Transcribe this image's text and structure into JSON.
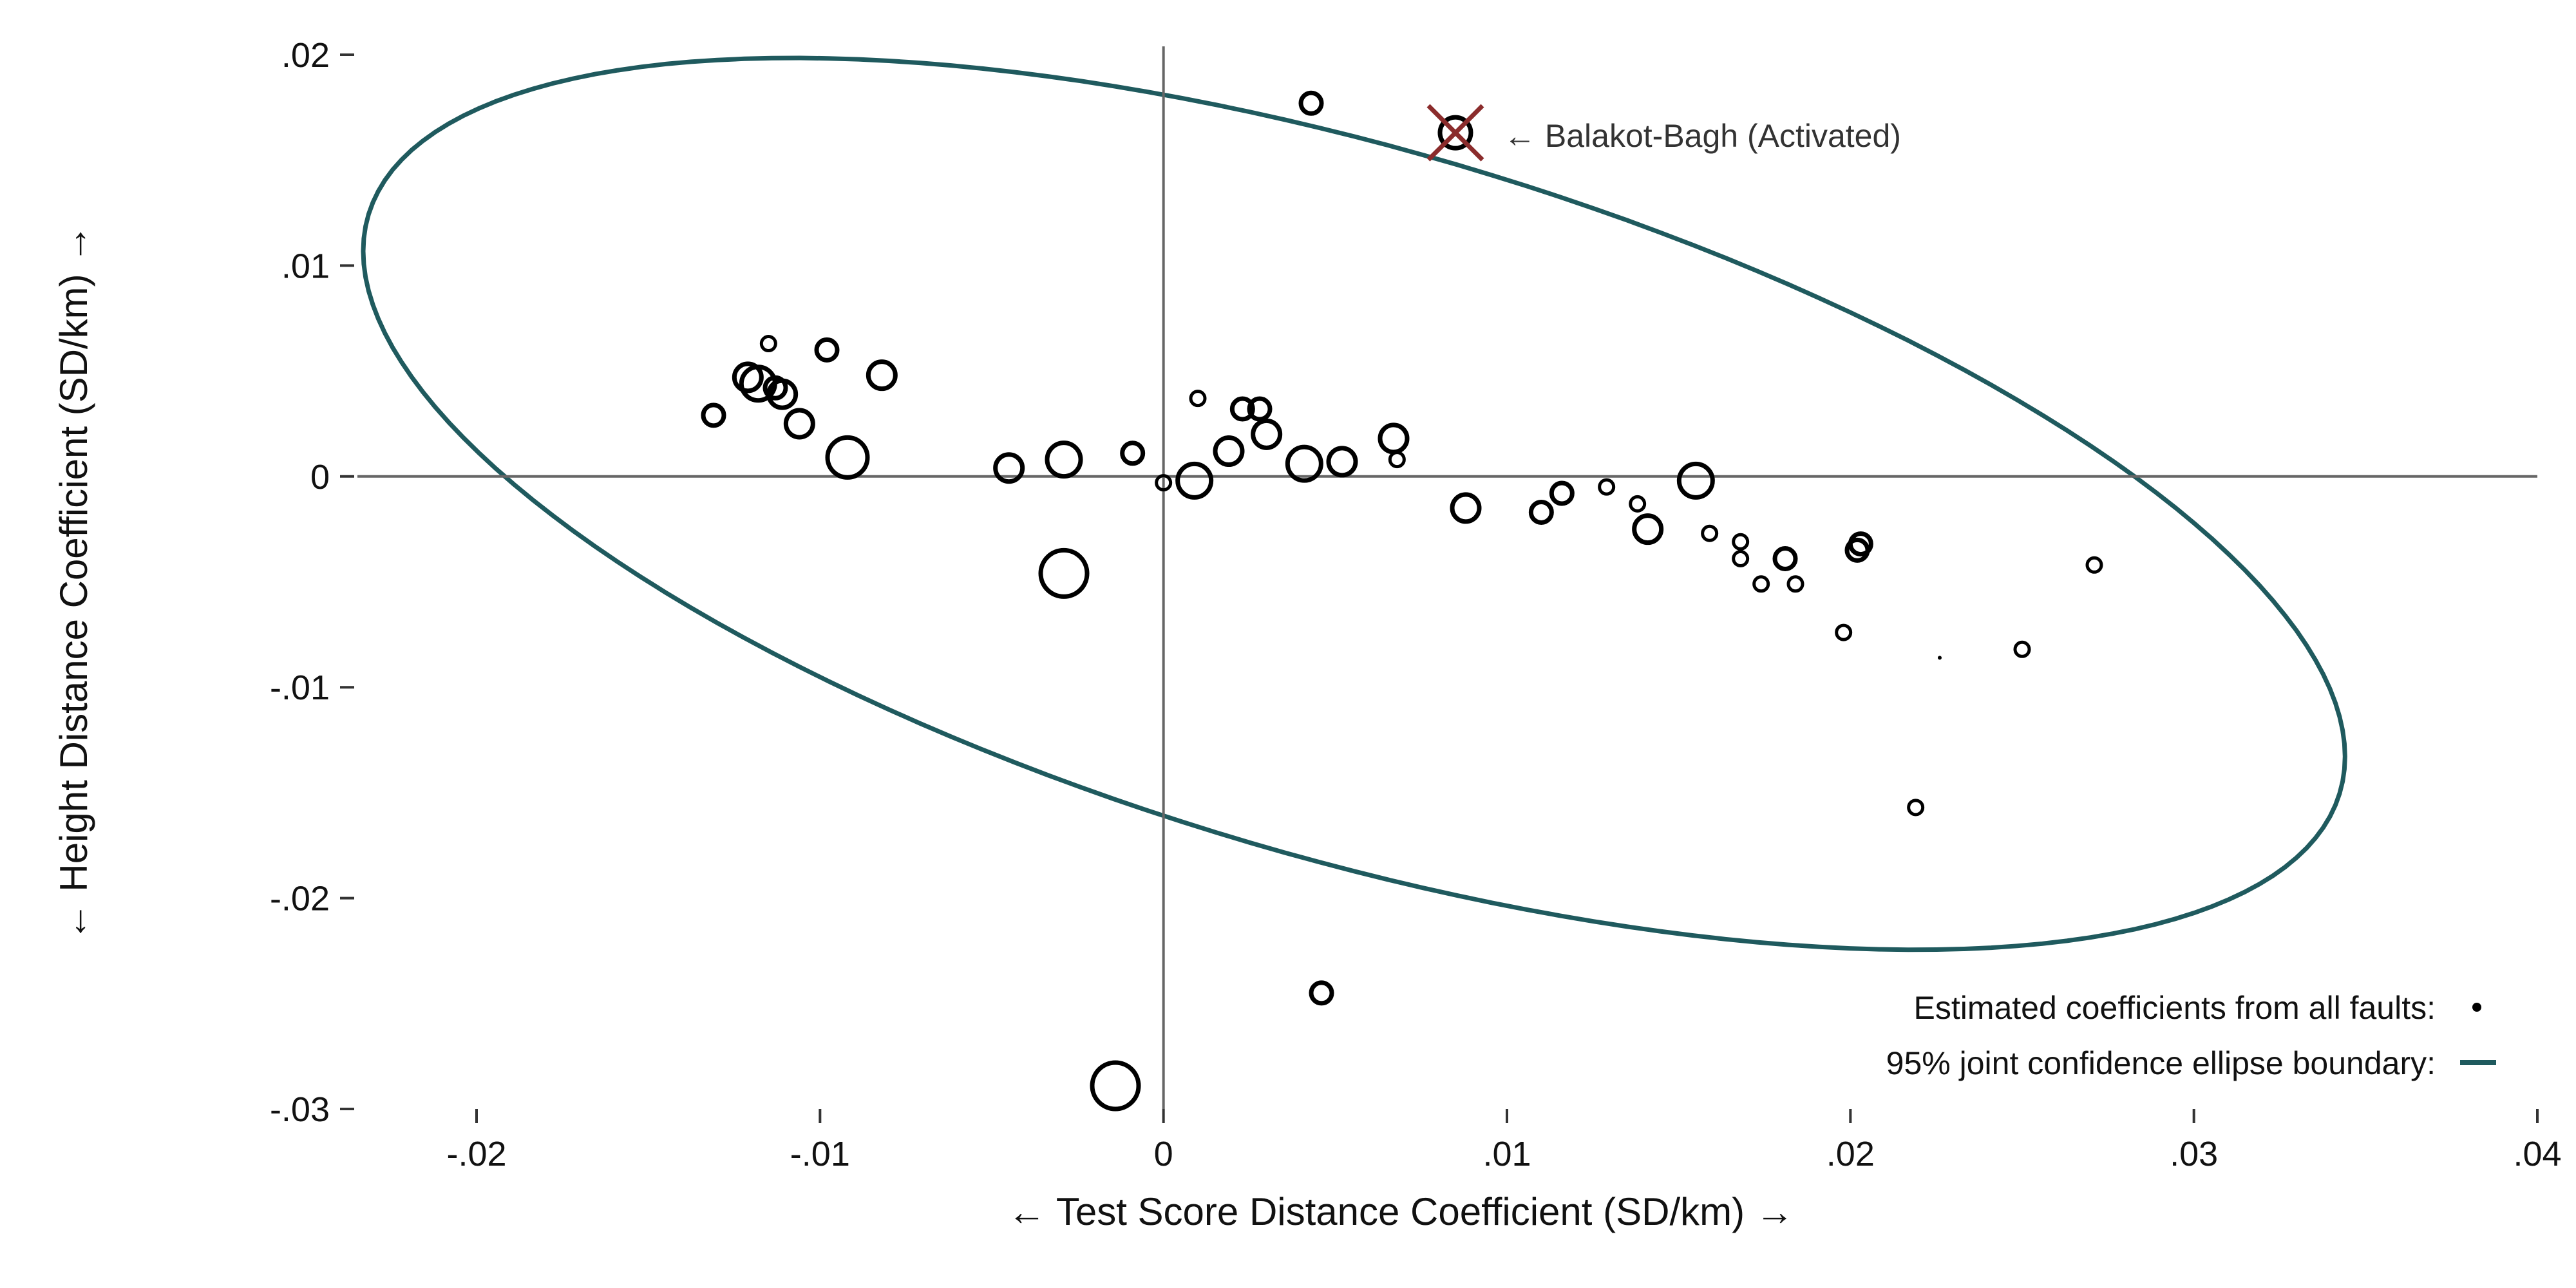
{
  "chart_data": {
    "type": "scatter",
    "xlabel": "← Test Score Distance Coefficient (SD/km) →",
    "ylabel": "← Height Distance Coefficient (SD/km) →",
    "xlim": [
      -0.02,
      0.04
    ],
    "ylim": [
      -0.03,
      0.02
    ],
    "xticks": [
      {
        "value": -0.02,
        "label": "-.02"
      },
      {
        "value": -0.01,
        "label": "-.01"
      },
      {
        "value": 0,
        "label": "0"
      },
      {
        "value": 0.01,
        "label": ".01"
      },
      {
        "value": 0.02,
        "label": ".02"
      },
      {
        "value": 0.03,
        "label": ".03"
      },
      {
        "value": 0.04,
        "label": ".04"
      }
    ],
    "yticks": [
      {
        "value": 0.02,
        "label": ".02"
      },
      {
        "value": 0.01,
        "label": ".01"
      },
      {
        "value": 0,
        "label": "0"
      },
      {
        "value": -0.01,
        "label": "-.01"
      },
      {
        "value": -0.02,
        "label": "-.02"
      },
      {
        "value": -0.03,
        "label": "-.03"
      }
    ],
    "reference_lines": {
      "x": 0,
      "y": 0
    },
    "grid": false,
    "series": [
      {
        "name": "Estimated coefficients from all faults:",
        "marker": "hollow-circle",
        "weight_encoding": "marker size",
        "points": [
          {
            "x": 0.0043,
            "y": 0.0177,
            "w": 2
          },
          {
            "x": -0.0131,
            "y": 0.0029,
            "w": 2
          },
          {
            "x": -0.0115,
            "y": 0.0063,
            "w": 1
          },
          {
            "x": -0.0121,
            "y": 0.0047,
            "w": 3
          },
          {
            "x": -0.0118,
            "y": 0.0044,
            "w": 4
          },
          {
            "x": -0.0113,
            "y": 0.0042,
            "w": 2
          },
          {
            "x": -0.0111,
            "y": 0.0039,
            "w": 3
          },
          {
            "x": -0.0106,
            "y": 0.0025,
            "w": 3
          },
          {
            "x": -0.0098,
            "y": 0.006,
            "w": 2
          },
          {
            "x": -0.0092,
            "y": 0.0009,
            "w": 5
          },
          {
            "x": -0.0082,
            "y": 0.0048,
            "w": 3
          },
          {
            "x": -0.0045,
            "y": 0.0004,
            "w": 3
          },
          {
            "x": -0.0029,
            "y": 0.0008,
            "w": 4
          },
          {
            "x": -0.0029,
            "y": -0.0046,
            "w": 6
          },
          {
            "x": -0.0014,
            "y": -0.0289,
            "w": 6
          },
          {
            "x": -0.0009,
            "y": 0.0011,
            "w": 2
          },
          {
            "x": 0.0,
            "y": -0.0003,
            "w": 1
          },
          {
            "x": 0.0009,
            "y": -0.0002,
            "w": 4
          },
          {
            "x": 0.001,
            "y": 0.0037,
            "w": 1
          },
          {
            "x": 0.0019,
            "y": 0.0012,
            "w": 3
          },
          {
            "x": 0.0023,
            "y": 0.0032,
            "w": 2
          },
          {
            "x": 0.0028,
            "y": 0.0032,
            "w": 2
          },
          {
            "x": 0.003,
            "y": 0.002,
            "w": 3
          },
          {
            "x": 0.0041,
            "y": 0.0006,
            "w": 4
          },
          {
            "x": 0.0052,
            "y": 0.0007,
            "w": 3
          },
          {
            "x": 0.0046,
            "y": -0.0245,
            "w": 2
          },
          {
            "x": 0.0067,
            "y": 0.0018,
            "w": 3
          },
          {
            "x": 0.0068,
            "y": 0.0008,
            "w": 1
          },
          {
            "x": 0.0088,
            "y": -0.0015,
            "w": 3
          },
          {
            "x": 0.011,
            "y": -0.0017,
            "w": 2
          },
          {
            "x": 0.0116,
            "y": -0.0008,
            "w": 2
          },
          {
            "x": 0.0129,
            "y": -0.0005,
            "w": 1
          },
          {
            "x": 0.0138,
            "y": -0.0013,
            "w": 1
          },
          {
            "x": 0.0141,
            "y": -0.0025,
            "w": 3
          },
          {
            "x": 0.0155,
            "y": -0.0002,
            "w": 4
          },
          {
            "x": 0.0159,
            "y": -0.0027,
            "w": 1
          },
          {
            "x": 0.0168,
            "y": -0.0031,
            "w": 1
          },
          {
            "x": 0.0168,
            "y": -0.0039,
            "w": 1
          },
          {
            "x": 0.0174,
            "y": -0.0051,
            "w": 1
          },
          {
            "x": 0.0181,
            "y": -0.0039,
            "w": 2
          },
          {
            "x": 0.0184,
            "y": -0.0051,
            "w": 1
          },
          {
            "x": 0.0198,
            "y": -0.0074,
            "w": 1
          },
          {
            "x": 0.0202,
            "y": -0.0035,
            "w": 2
          },
          {
            "x": 0.0203,
            "y": -0.0032,
            "w": 2
          },
          {
            "x": 0.0219,
            "y": -0.0157,
            "w": 1
          },
          {
            "x": 0.0226,
            "y": -0.0086,
            "w": 0
          },
          {
            "x": 0.025,
            "y": -0.0082,
            "w": 1
          },
          {
            "x": 0.0271,
            "y": -0.0042,
            "w": 1
          }
        ]
      },
      {
        "name": "95% joint confidence ellipse boundary:",
        "marker": "line",
        "ellipse": {
          "center_x": 0.0055,
          "center_y": -0.0013,
          "extreme_x": [
            -0.0233,
            0.0344
          ],
          "extreme_y": [
            -0.0189,
            0.0163
          ]
        }
      }
    ],
    "highlight": {
      "x": 0.0085,
      "y": 0.0163,
      "marker": "x-over-circle"
    },
    "annotations": [
      {
        "text": "← Balakot-Bagh (Activated)",
        "x": 0.0085,
        "y": 0.0163
      }
    ],
    "legend": {
      "position": "bottom-right",
      "entries": [
        {
          "label": "Estimated coefficients from all faults:",
          "symbol": "dot"
        },
        {
          "label": "95% joint confidence ellipse boundary:",
          "symbol": "line"
        }
      ]
    },
    "colors": {
      "ellipse": "#1f5a5e",
      "points": "#000000",
      "reference_lines": "#666666",
      "highlight_cross": "#8b2c2c"
    }
  }
}
